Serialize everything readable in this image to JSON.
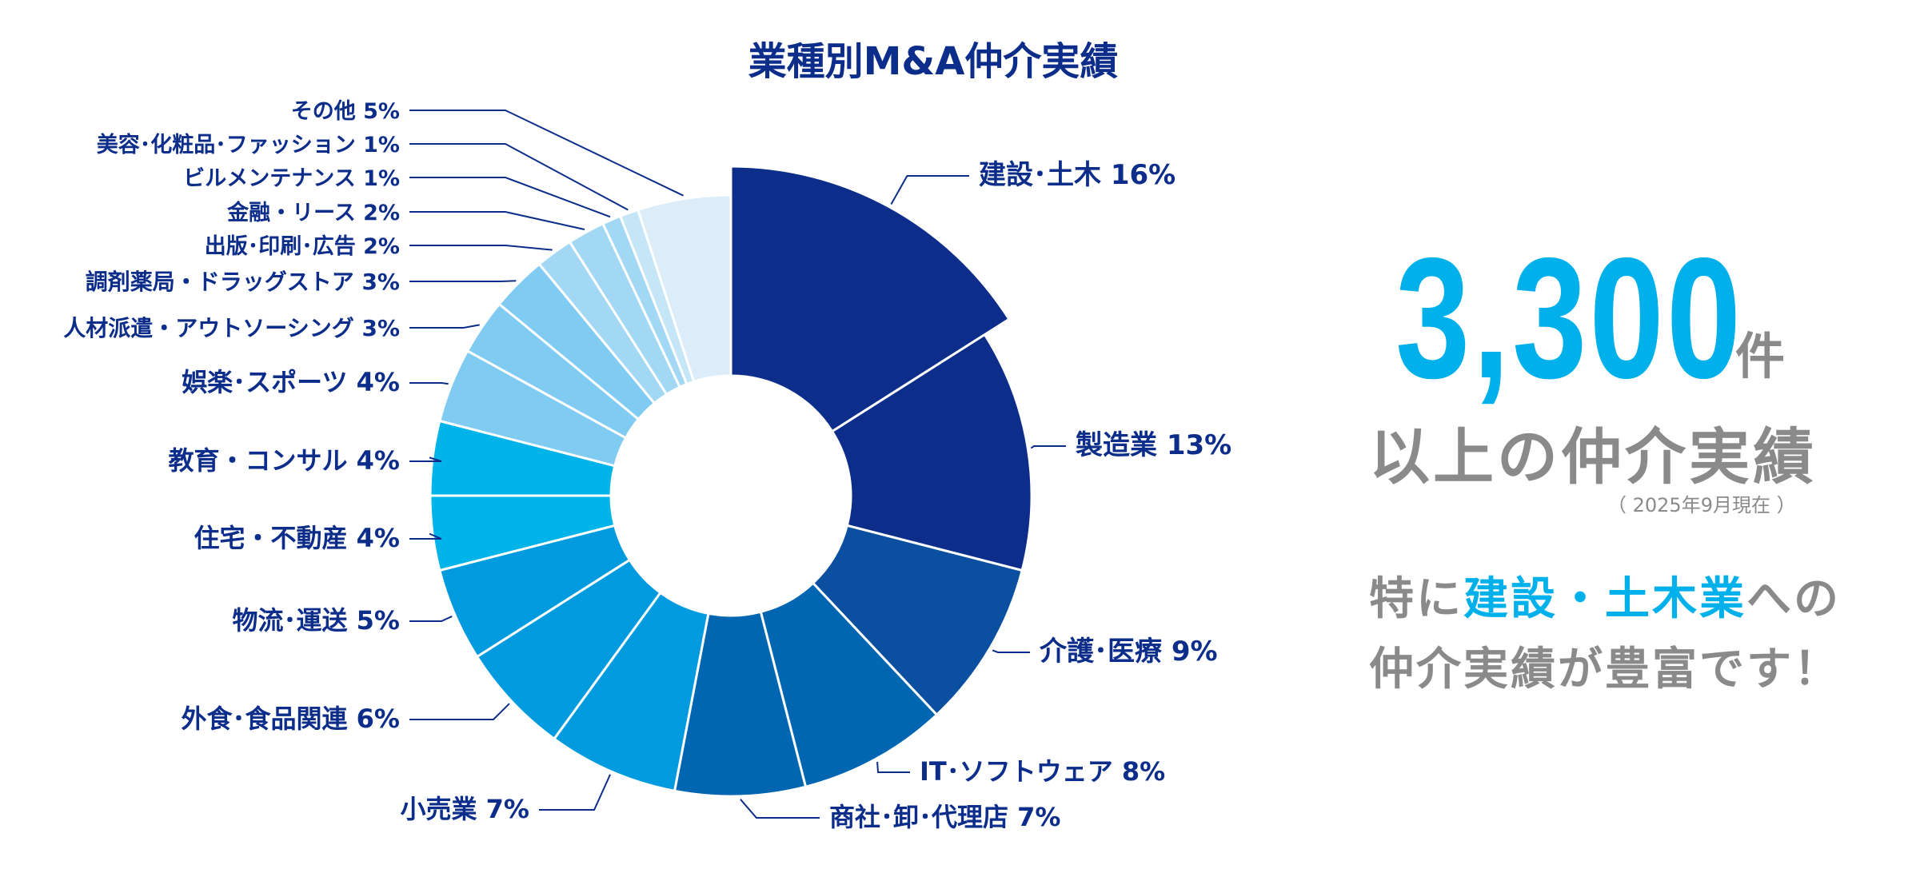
{
  "chart_data": {
    "type": "pie",
    "variant": "donut",
    "title": "業種別M&A仲介実績",
    "unit": "%",
    "slices": [
      {
        "label": "建設・土木",
        "display": "建設･土木 16%",
        "value": 16,
        "color": "#0c2d8a",
        "exploded": true
      },
      {
        "label": "製造業",
        "display": "製造業 13%",
        "value": 13,
        "color": "#0c2d8a"
      },
      {
        "label": "介護・医療",
        "display": "介護･医療 9%",
        "value": 9,
        "color": "#0a4fa0"
      },
      {
        "label": "IT・ソフトウェア",
        "display": "IT･ソフトウェア 8%",
        "value": 8,
        "color": "#0066b2"
      },
      {
        "label": "商社・卸・代理店",
        "display": "商社･卸･代理店 7%",
        "value": 7,
        "color": "#0066b2"
      },
      {
        "label": "小売業",
        "display": "小売業 7%",
        "value": 7,
        "color": "#009bdf"
      },
      {
        "label": "外食・食品関連",
        "display": "外食･食品関連 6%",
        "value": 6,
        "color": "#009bdf"
      },
      {
        "label": "物流・運送",
        "display": "物流･運送 5%",
        "value": 5,
        "color": "#009bdf"
      },
      {
        "label": "住宅・不動産",
        "display": "住宅・不動産 4%",
        "value": 4,
        "color": "#00b4ea"
      },
      {
        "label": "教育・コンサル",
        "display": "教育・コンサル 4%",
        "value": 4,
        "color": "#00b4ea"
      },
      {
        "label": "娯楽・スポーツ",
        "display": "娯楽･スポーツ 4%",
        "value": 4,
        "color": "#7fcbf1"
      },
      {
        "label": "人材派遣・アウトソーシング",
        "display": "人材派遣・アウトソーシング 3%",
        "value": 3,
        "color": "#7fcbf1"
      },
      {
        "label": "調剤薬局・ドラッグストア",
        "display": "調剤薬局・ドラッグストア 3%",
        "value": 3,
        "color": "#7fcbf1"
      },
      {
        "label": "出版・印刷・広告",
        "display": "出版･印刷･広告 2%",
        "value": 2,
        "color": "#a3d8f4"
      },
      {
        "label": "金融・リース",
        "display": "金融・リース 2%",
        "value": 2,
        "color": "#a3d8f4"
      },
      {
        "label": "ビルメンテナンス",
        "display": "ビルメンテナンス 1%",
        "value": 1,
        "color": "#a3d8f4"
      },
      {
        "label": "美容・化粧品・ファッション",
        "display": "美容･化粧品･ファッション 1%",
        "value": 1,
        "color": "#c5e6f7"
      },
      {
        "label": "その他",
        "display": "その他 5%",
        "value": 5,
        "color": "#dcedf9"
      }
    ]
  },
  "summary": {
    "count": "3,300",
    "count_unit": "件",
    "subtitle": "以上の仲介実績",
    "as_of": "（ 2025年9月現在 ）",
    "message_pre": "特に",
    "message_highlight": "建設・土木業",
    "message_post": "への",
    "message_line2": "仲介実績が豊富です！"
  },
  "colors": {
    "title": "#0c2d8a",
    "accent": "#00b0ea",
    "text_gray": "#8a8a8a"
  }
}
